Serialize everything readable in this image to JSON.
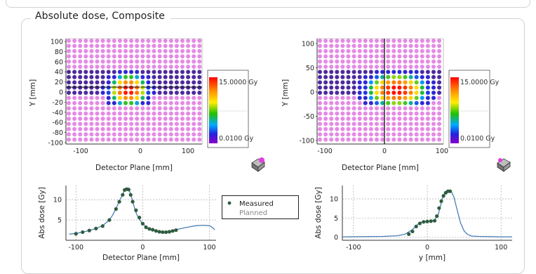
{
  "panel": {
    "title": "Absolute dose, Composite"
  },
  "left_map": {
    "ylabel": "Y [mm]",
    "xlabel": "Detector Plane [mm]",
    "x_ticks": [
      "-100",
      "0",
      "100"
    ],
    "y_ticks": [
      "100",
      "80",
      "60",
      "40",
      "20",
      "0",
      "-20",
      "-40",
      "-60",
      "-80",
      "-100"
    ],
    "colorbar": {
      "max_label": "15.0000 Gy",
      "min_label": "0.0100 Gy"
    }
  },
  "right_map": {
    "ylabel": "Y [mm]",
    "xlabel": "Detector Plane [mm]",
    "x_ticks": [
      "-100",
      "0",
      "100"
    ],
    "y_ticks": [
      "100",
      "50",
      "0",
      "-50",
      "-100"
    ],
    "colorbar": {
      "max_label": "15.0000 Gy",
      "min_label": "0.0100 Gy"
    }
  },
  "icons": {
    "left": "detector-3d-icon",
    "right": "detector-3d-icon"
  },
  "colors": {
    "background_dot": "#e58ae5",
    "colorbar_top": "#ff0000",
    "colorbar_bottom": "#7a00c8",
    "measured_point": "#2f5c3f",
    "planned_line": "#4a7fb8"
  },
  "legend": {
    "measured": "Measured",
    "planned": "Planned"
  },
  "chart_data": [
    {
      "type": "line",
      "xlabel": "Detector Plane [mm]",
      "ylabel": "Abs dose [Gy]",
      "xlim": [
        -115,
        110
      ],
      "ylim": [
        0,
        13.5
      ],
      "x_ticks": [
        -100,
        0,
        100
      ],
      "x_tick_labels": [
        "-100",
        "0",
        "100"
      ],
      "y_ticks": [
        5,
        10
      ],
      "y_tick_labels": [
        "5",
        "10"
      ],
      "grid": true,
      "series": [
        {
          "name": "Planned",
          "x": [
            -110,
            -100,
            -90,
            -80,
            -70,
            -60,
            -50,
            -45,
            -40,
            -35,
            -30,
            -27,
            -24,
            -21,
            -18,
            -15,
            -12,
            -9,
            -5,
            0,
            5,
            10,
            20,
            30,
            40,
            50,
            60,
            70,
            80,
            90,
            100,
            105,
            108
          ],
          "values": [
            1.5,
            1.7,
            2.0,
            2.4,
            2.9,
            3.6,
            5.0,
            6.2,
            7.8,
            9.6,
            11.3,
            12.4,
            12.7,
            12.5,
            11.4,
            9.6,
            7.8,
            6.4,
            5.2,
            4.1,
            3.3,
            2.8,
            2.2,
            2.0,
            2.1,
            2.6,
            3.0,
            3.3,
            3.6,
            3.7,
            3.6,
            3.1,
            2.6
          ]
        },
        {
          "name": "Measured",
          "x": [
            -100,
            -90,
            -80,
            -70,
            -60,
            -50,
            -40,
            -35,
            -30,
            -27,
            -24,
            -21,
            -18,
            -15,
            -10,
            -5,
            0,
            5,
            10,
            15,
            20,
            25,
            30,
            35,
            40,
            45,
            50
          ],
          "values": [
            1.6,
            2.0,
            2.4,
            2.9,
            3.5,
            5.0,
            7.7,
            9.5,
            11.2,
            12.4,
            12.6,
            12.5,
            11.2,
            9.5,
            7.4,
            5.6,
            4.1,
            3.2,
            2.8,
            2.6,
            2.3,
            2.1,
            2.0,
            2.0,
            2.1,
            2.3,
            2.5
          ]
        }
      ]
    },
    {
      "type": "line",
      "xlabel": "y [mm]",
      "ylabel": "Abs dose [Gy]",
      "xlim": [
        -115,
        115
      ],
      "ylim": [
        -0.8,
        13.5
      ],
      "x_ticks": [
        -100,
        0,
        100
      ],
      "x_tick_labels": [
        "-100",
        "0",
        "100"
      ],
      "y_ticks": [
        0,
        5,
        10
      ],
      "y_tick_labels": [
        "0",
        "5",
        "10"
      ],
      "grid": true,
      "series": [
        {
          "name": "Planned",
          "x": [
            -115,
            -60,
            -40,
            -30,
            -20,
            -15,
            -10,
            -5,
            0,
            5,
            10,
            15,
            18,
            21,
            24,
            27,
            30,
            33,
            36,
            40,
            45,
            50,
            55,
            60,
            70,
            100,
            115
          ],
          "values": [
            0.1,
            0.2,
            0.4,
            0.8,
            2.0,
            3.0,
            3.8,
            4.0,
            4.1,
            4.2,
            4.5,
            6.0,
            8.2,
            10.5,
            11.6,
            12.0,
            12.1,
            11.8,
            10.5,
            7.5,
            3.8,
            1.6,
            0.7,
            0.3,
            0.2,
            0.1,
            0.1
          ]
        },
        {
          "name": "Measured",
          "x": [
            -25,
            -20,
            -15,
            -10,
            -5,
            0,
            5,
            10,
            13,
            16,
            19,
            22,
            25,
            28,
            31
          ],
          "values": [
            0.8,
            1.5,
            2.8,
            3.6,
            4.0,
            4.1,
            4.2,
            4.3,
            5.5,
            7.6,
            9.4,
            10.8,
            11.6,
            12.0,
            12.0
          ]
        }
      ]
    }
  ]
}
